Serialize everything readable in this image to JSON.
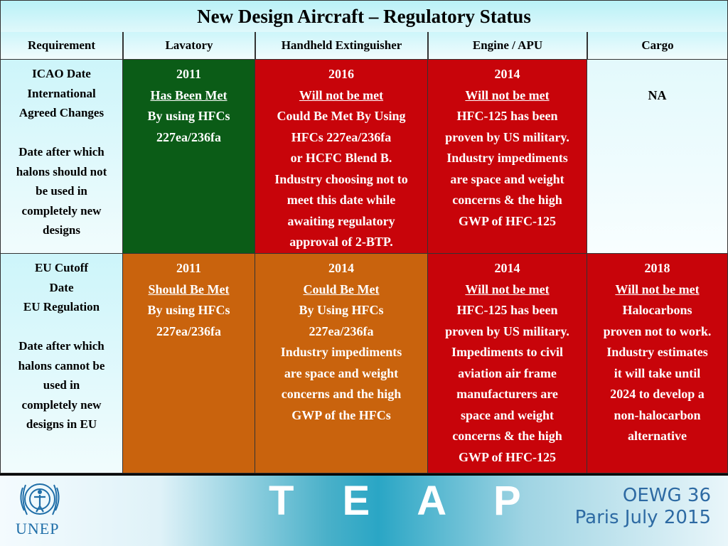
{
  "title": "New Design Aircraft – Regulatory Status",
  "headers": [
    "Requirement",
    "Lavatory",
    "Handheld Extinguisher",
    "Engine / APU",
    "Cargo"
  ],
  "rows": [
    {
      "requirement": {
        "part1": [
          "ICAO Date",
          "International",
          "Agreed Changes"
        ],
        "part2": [
          "Date after which",
          "halons should not",
          "be used in",
          "completely new",
          "designs"
        ]
      },
      "lavatory": {
        "year": "2011",
        "status": "Has Been Met",
        "lines": [
          "By using HFCs",
          "227ea/236fa"
        ]
      },
      "handheld": {
        "year": "2016",
        "status": "Will not be met",
        "lines": [
          "Could Be Met By Using",
          "HFCs 227ea/236fa",
          "or HCFC Blend B.",
          "Industry choosing not to",
          "meet this date while",
          "awaiting regulatory",
          "approval of 2-BTP."
        ]
      },
      "engine": {
        "year": "2014",
        "status": "Will not be met",
        "lines": [
          "HFC-125 has been",
          "proven by US military.",
          "Industry impediments",
          "are space and weight",
          "concerns & the high",
          "GWP of HFC-125"
        ]
      },
      "cargo": {
        "text": "NA"
      }
    },
    {
      "requirement": {
        "part1": [
          "EU Cutoff",
          "Date",
          "EU Regulation"
        ],
        "part2": [
          "Date after which",
          "halons cannot be",
          "used in",
          "completely new",
          "designs in EU"
        ]
      },
      "lavatory": {
        "year": "2011",
        "status": "Should Be Met",
        "lines": [
          "By using HFCs",
          "227ea/236fa"
        ]
      },
      "handheld": {
        "year": "2014",
        "status": "Could Be Met",
        "lines": [
          "By Using HFCs",
          "227ea/236fa",
          "Industry impediments",
          "are space and weight",
          "concerns and the high",
          "GWP of the HFCs"
        ]
      },
      "engine": {
        "year": "2014",
        "status": "Will not be met",
        "lines": [
          "HFC-125 has been",
          "proven by US military.",
          "Impediments to civil",
          "aviation air frame",
          "manufacturers are",
          "space and weight",
          "concerns & the high",
          "GWP of HFC-125"
        ]
      },
      "cargo": {
        "year": "2018",
        "status": "Will not be met",
        "lines": [
          "Halocarbons",
          "proven not to work.",
          "Industry estimates",
          "it will take until",
          "2024 to develop a",
          "non-halocarbon",
          "alternative"
        ]
      }
    }
  ],
  "footer": {
    "logo_text": "UNEP",
    "logo_icon": "un-emblem-icon",
    "brand": "T E A P",
    "meeting_line1": "OEWG 36",
    "meeting_line2": "Paris July 2015"
  },
  "colors": {
    "met": "#0b5c17",
    "not_met": "#c8040a",
    "could_be_met": "#c9630d",
    "header_bg": "#cdf5fa",
    "footer_text": "#2d6aa3"
  }
}
